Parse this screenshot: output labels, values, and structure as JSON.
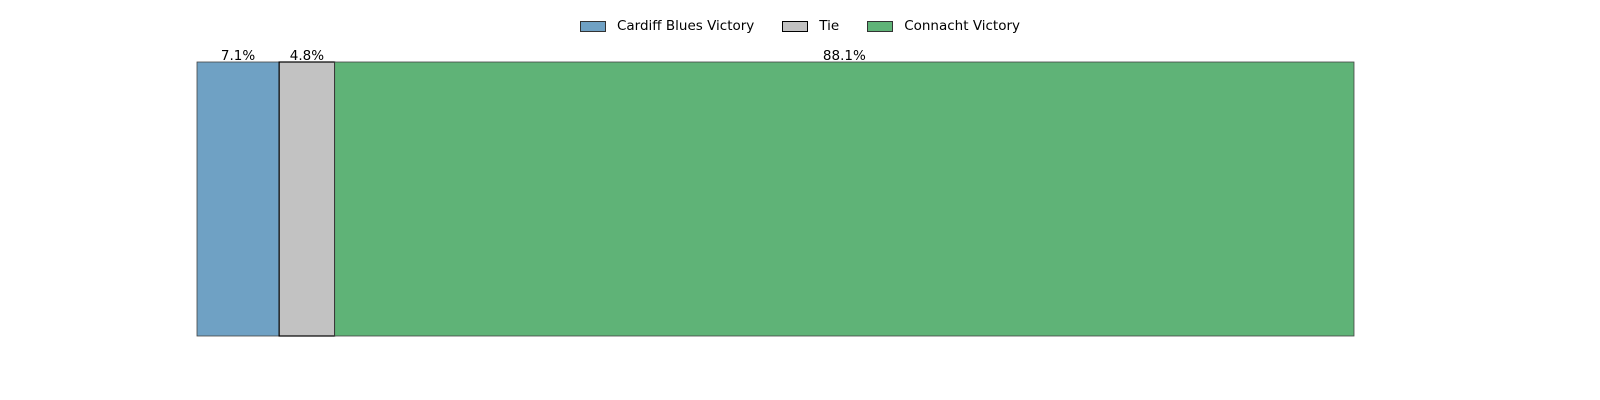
{
  "chart_data": {
    "type": "bar",
    "orientation": "horizontal-stacked",
    "categories": [
      ""
    ],
    "series": [
      {
        "name": "Cardiff Blues Victory",
        "values": [
          7.1
        ],
        "label": "7.1%",
        "color": "#6fa1c4"
      },
      {
        "name": "Tie",
        "values": [
          4.8
        ],
        "label": "4.8%",
        "color": "#c2c2c2"
      },
      {
        "name": "Connacht Victory",
        "values": [
          88.1
        ],
        "label": "88.1%",
        "color": "#5fb377"
      }
    ],
    "xlim": [
      0,
      100
    ],
    "title": "",
    "xlabel": "",
    "ylabel": "",
    "grid": false,
    "axes_visible": false,
    "legend": {
      "position": "top-center",
      "entries": [
        "Cardiff Blues Victory",
        "Tie",
        "Connacht Victory"
      ]
    }
  }
}
